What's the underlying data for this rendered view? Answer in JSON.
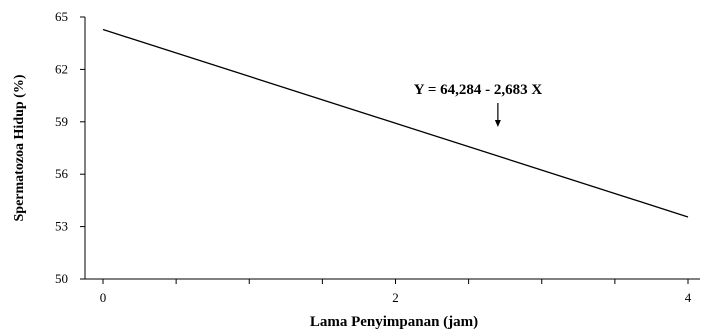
{
  "chart_data": {
    "type": "line",
    "xlabel": "Lama Penyimpanan (jam)",
    "ylabel": "Spermatozoa Hidup (%)",
    "xlim": [
      0,
      4
    ],
    "ylim": [
      50,
      65
    ],
    "x_ticks": [
      "0",
      "2",
      "4"
    ],
    "y_ticks": [
      "50",
      "53",
      "56",
      "59",
      "62",
      "65"
    ],
    "series": [
      {
        "x": [
          0,
          4
        ],
        "y": [
          64.284,
          53.552
        ]
      }
    ],
    "annotation": {
      "text": "Y = 64,284 - 2,683 X",
      "arrow_to_x": 2.7
    },
    "grid": false,
    "legend": "none"
  }
}
